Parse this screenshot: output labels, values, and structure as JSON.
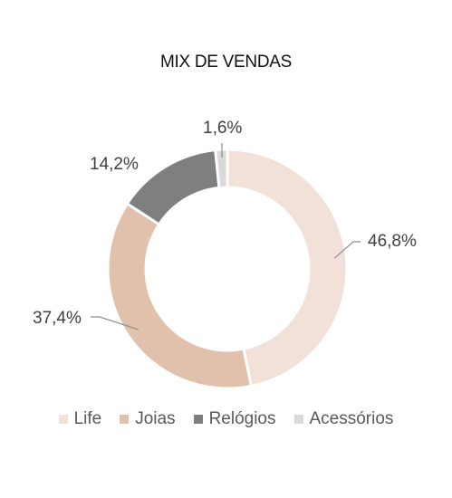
{
  "chart_data": {
    "type": "pie",
    "title": "MIX DE VENDAS",
    "categories": [
      "Life",
      "Joias",
      "Relógios",
      "Acessórios"
    ],
    "values": [
      46.8,
      37.4,
      14.2,
      1.6
    ],
    "data_labels": [
      "46,8%",
      "37,4%",
      "14,2%",
      "1,6%"
    ],
    "colors": [
      "#f2e1d8",
      "#e2c1ac",
      "#7f7f7f",
      "#d9d9d9"
    ],
    "donut": true,
    "legend_position": "bottom",
    "grid": false
  }
}
